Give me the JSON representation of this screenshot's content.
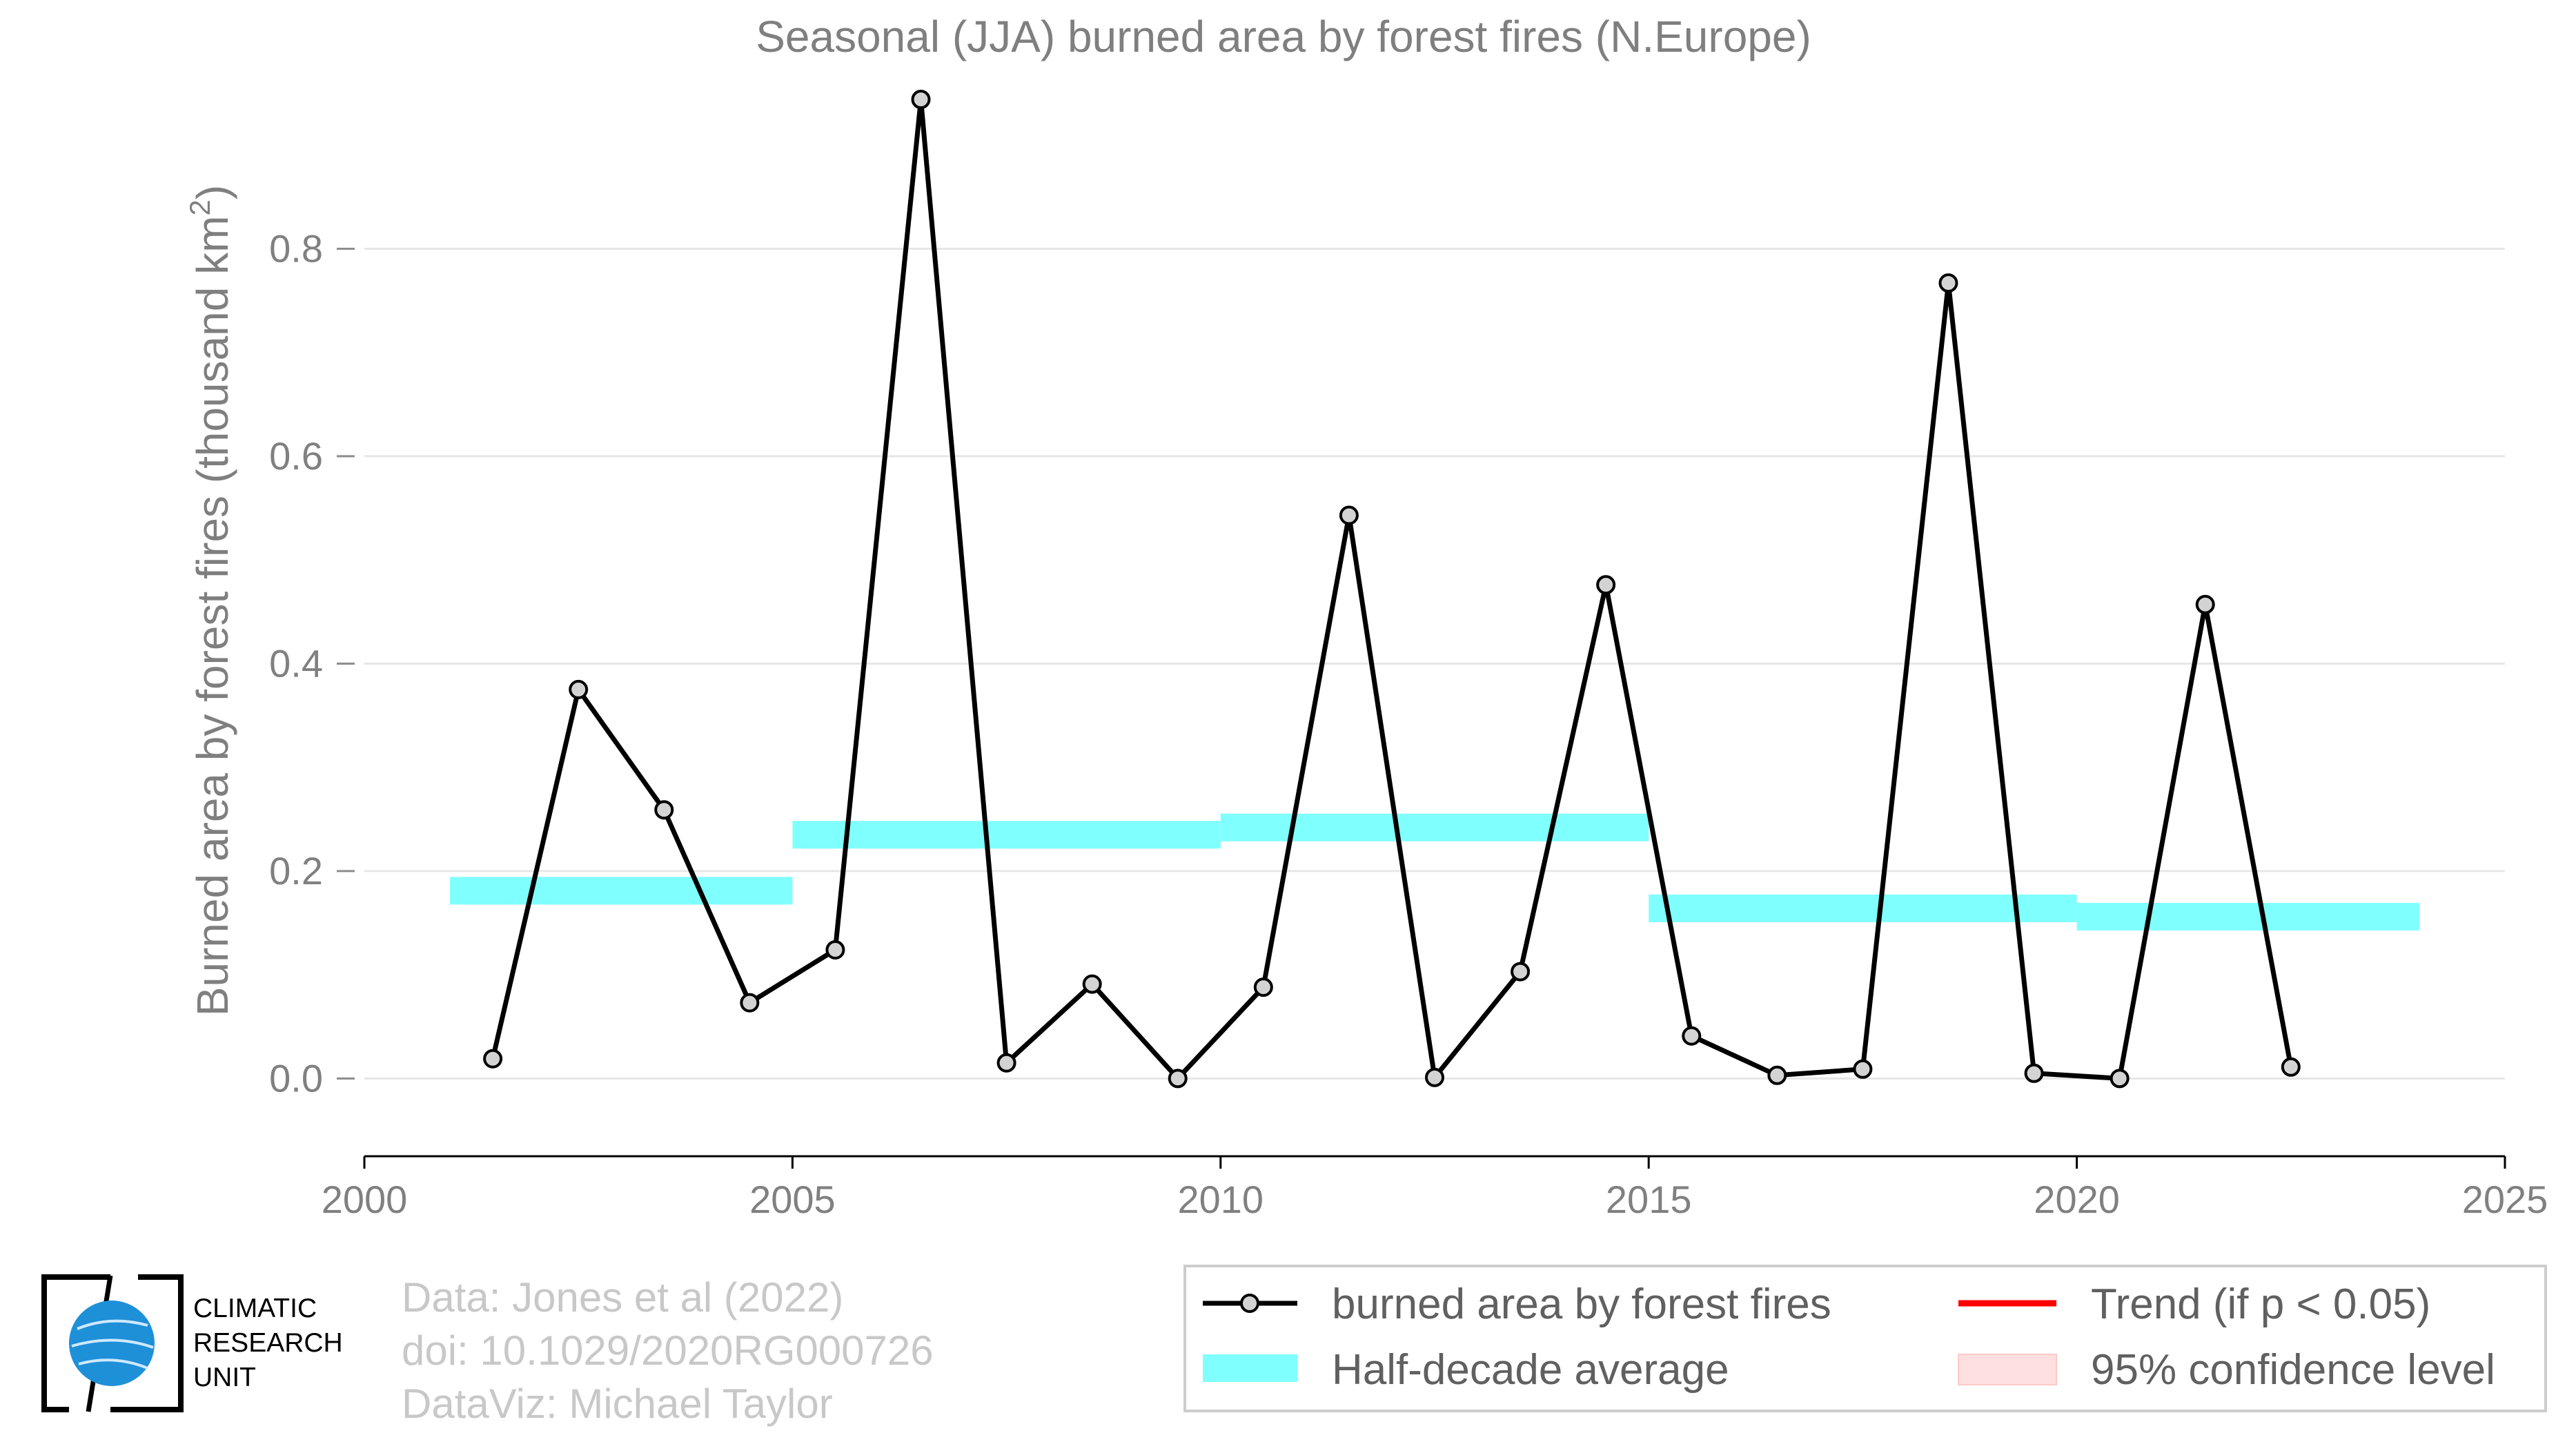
{
  "chart_data": {
    "type": "line",
    "title": "Seasonal (JJA) burned area by forest fires (N.Europe)",
    "ylabel": "Burned area by forest fires (thousand km",
    "ylabel_sup": "2",
    "ylabel_close": ")",
    "xlabel": "",
    "xlim": [
      2000,
      2025
    ],
    "ylim": [
      -0.075,
      0.96
    ],
    "xticks": [
      2000,
      2005,
      2010,
      2015,
      2020,
      2025
    ],
    "yticks": [
      0.0,
      0.2,
      0.4,
      0.6,
      0.8
    ],
    "ytick_labels": [
      "0.0",
      "0.2",
      "0.4",
      "0.6",
      "0.8"
    ],
    "grid": "horizontal",
    "series": [
      {
        "name": "burned area by forest fires",
        "color": "#000000",
        "marker_fill": "#d3d3d3",
        "x": [
          2001.5,
          2002.5,
          2003.5,
          2004.5,
          2005.5,
          2006.5,
          2007.5,
          2008.5,
          2009.5,
          2010.5,
          2011.5,
          2012.5,
          2013.5,
          2014.5,
          2015.5,
          2016.5,
          2017.5,
          2018.5,
          2019.5,
          2020.5,
          2021.5,
          2022.5
        ],
        "y": [
          0.019,
          0.375,
          0.259,
          0.073,
          0.124,
          0.944,
          0.015,
          0.091,
          0.0,
          0.088,
          0.543,
          0.001,
          0.103,
          0.476,
          0.041,
          0.003,
          0.009,
          0.767,
          0.005,
          0.0,
          0.457,
          0.011
        ]
      },
      {
        "name": "Half-decade average",
        "color": "#80ffff",
        "segments": [
          {
            "x0": 2001,
            "x1": 2005,
            "y": 0.181
          },
          {
            "x0": 2005,
            "x1": 2010,
            "y": 0.235
          },
          {
            "x0": 2010,
            "x1": 2015,
            "y": 0.242
          },
          {
            "x0": 2015,
            "x1": 2020,
            "y": 0.164
          },
          {
            "x0": 2020,
            "x1": 2024,
            "y": 0.156
          }
        ]
      }
    ],
    "legend": {
      "placement": "bottom-right",
      "items": [
        {
          "label": "burned area by forest fires",
          "kind": "line-marker",
          "color": "#000000"
        },
        {
          "label": "Trend (if p < 0.05)",
          "kind": "line",
          "color": "#ff0000"
        },
        {
          "label": "Half-decade average",
          "kind": "band",
          "color": "#80ffff"
        },
        {
          "label": "95% confidence level",
          "kind": "band",
          "color": "#ffe0e0"
        }
      ]
    },
    "credits": [
      "Data: Jones et al (2022)",
      "doi: 10.1029/2020RG000726",
      "DataViz: Michael Taylor"
    ]
  },
  "logo": {
    "lines": [
      "CLIMATIC",
      "RESEARCH",
      "UNIT"
    ],
    "globe_color": "#1e90d8"
  }
}
